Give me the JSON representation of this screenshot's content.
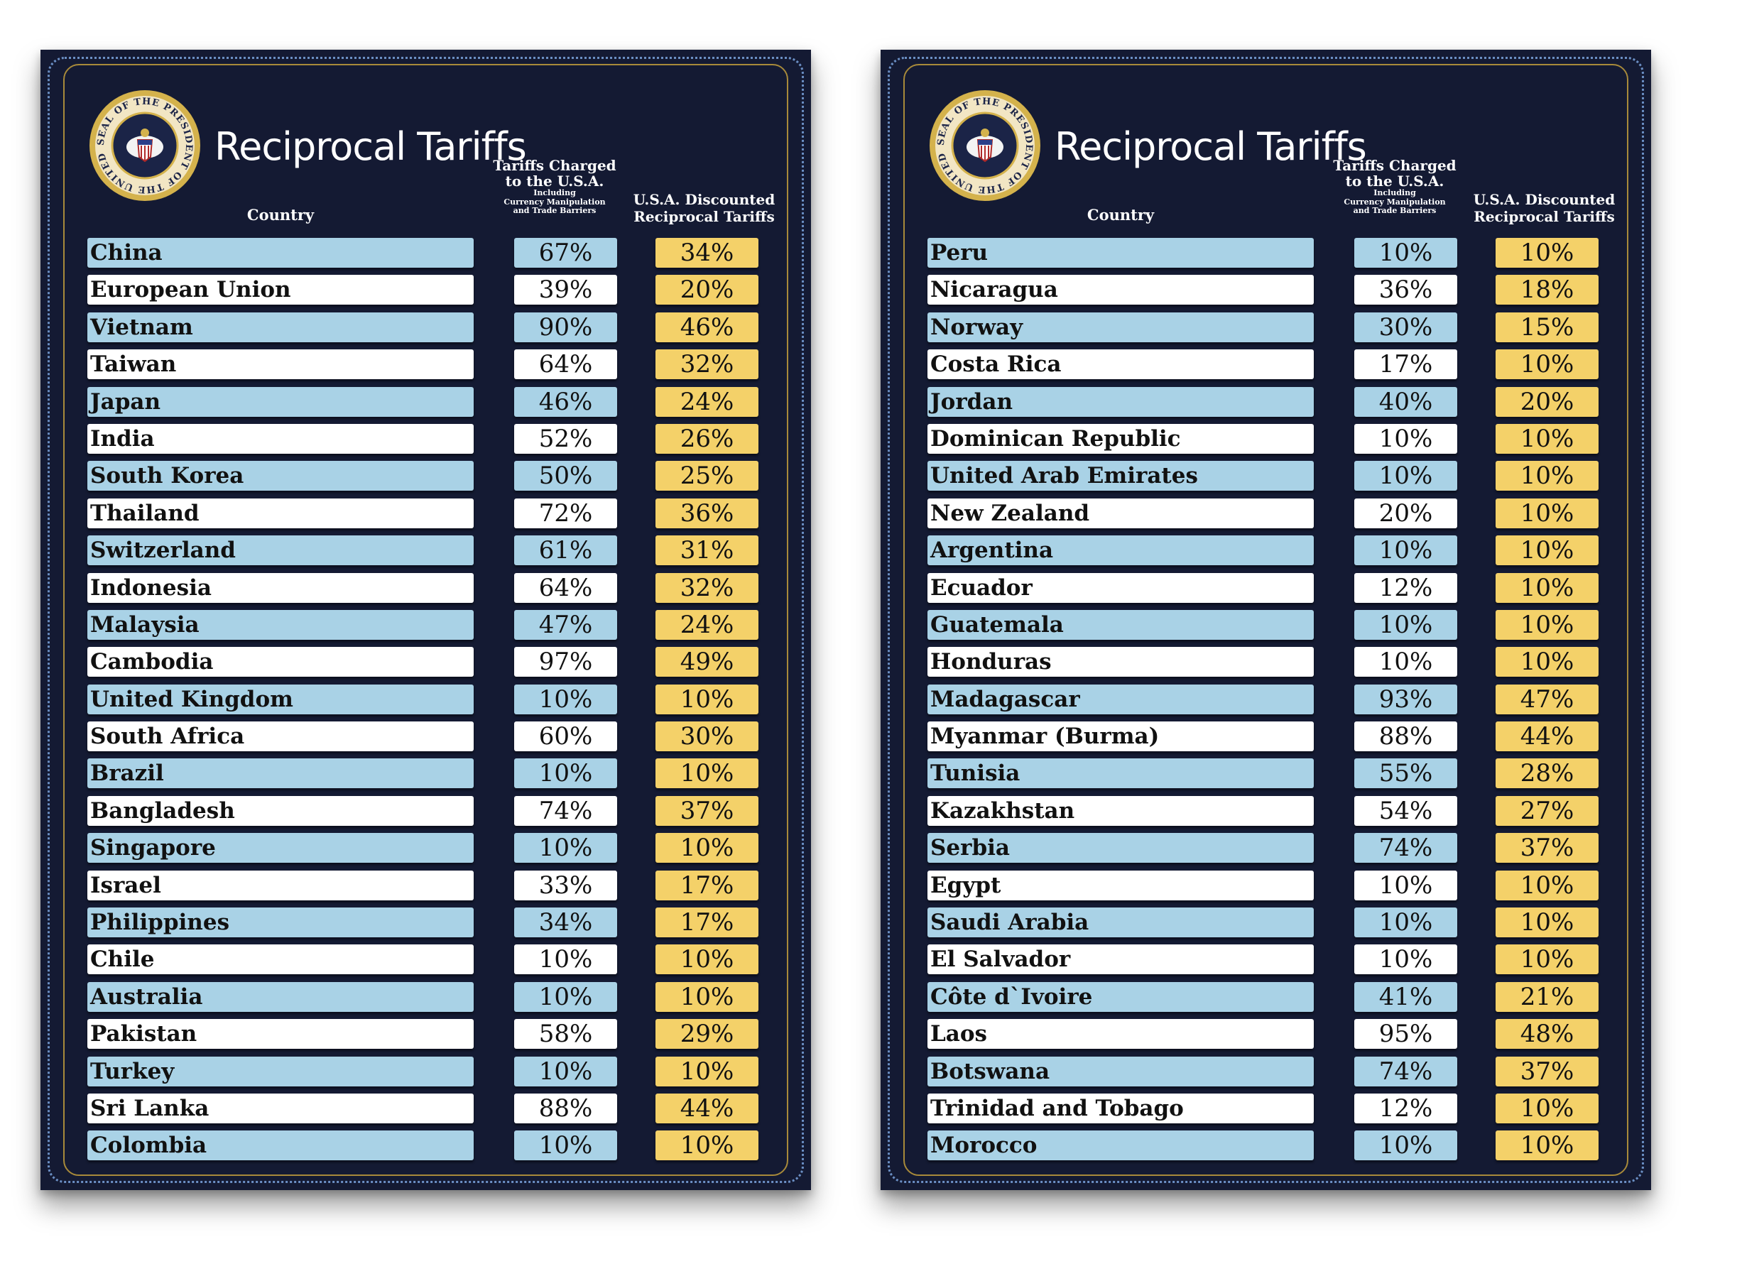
{
  "chart_data": [
    {
      "type": "table",
      "title": "Reciprocal Tariffs",
      "columns": [
        "Country",
        "Tariffs Charged to the U.S.A. Including Currency Manipulation and Trade Barriers",
        "U.S.A. Discounted Reciprocal Tariffs"
      ],
      "rows": [
        {
          "country": "China",
          "charged": "67%",
          "discounted": "34%"
        },
        {
          "country": "European Union",
          "charged": "39%",
          "discounted": "20%"
        },
        {
          "country": "Vietnam",
          "charged": "90%",
          "discounted": "46%"
        },
        {
          "country": "Taiwan",
          "charged": "64%",
          "discounted": "32%"
        },
        {
          "country": "Japan",
          "charged": "46%",
          "discounted": "24%"
        },
        {
          "country": "India",
          "charged": "52%",
          "discounted": "26%"
        },
        {
          "country": "South Korea",
          "charged": "50%",
          "discounted": "25%"
        },
        {
          "country": "Thailand",
          "charged": "72%",
          "discounted": "36%"
        },
        {
          "country": "Switzerland",
          "charged": "61%",
          "discounted": "31%"
        },
        {
          "country": "Indonesia",
          "charged": "64%",
          "discounted": "32%"
        },
        {
          "country": "Malaysia",
          "charged": "47%",
          "discounted": "24%"
        },
        {
          "country": "Cambodia",
          "charged": "97%",
          "discounted": "49%"
        },
        {
          "country": "United Kingdom",
          "charged": "10%",
          "discounted": "10%"
        },
        {
          "country": "South Africa",
          "charged": "60%",
          "discounted": "30%"
        },
        {
          "country": "Brazil",
          "charged": "10%",
          "discounted": "10%"
        },
        {
          "country": "Bangladesh",
          "charged": "74%",
          "discounted": "37%"
        },
        {
          "country": "Singapore",
          "charged": "10%",
          "discounted": "10%"
        },
        {
          "country": "Israel",
          "charged": "33%",
          "discounted": "17%"
        },
        {
          "country": "Philippines",
          "charged": "34%",
          "discounted": "17%"
        },
        {
          "country": "Chile",
          "charged": "10%",
          "discounted": "10%"
        },
        {
          "country": "Australia",
          "charged": "10%",
          "discounted": "10%"
        },
        {
          "country": "Pakistan",
          "charged": "58%",
          "discounted": "29%"
        },
        {
          "country": "Turkey",
          "charged": "10%",
          "discounted": "10%"
        },
        {
          "country": "Sri Lanka",
          "charged": "88%",
          "discounted": "44%"
        },
        {
          "country": "Colombia",
          "charged": "10%",
          "discounted": "10%"
        }
      ]
    },
    {
      "type": "table",
      "title": "Reciprocal Tariffs",
      "columns": [
        "Country",
        "Tariffs Charged to the U.S.A. Including Currency Manipulation and Trade Barriers",
        "U.S.A. Discounted Reciprocal Tariffs"
      ],
      "rows": [
        {
          "country": "Peru",
          "charged": "10%",
          "discounted": "10%"
        },
        {
          "country": "Nicaragua",
          "charged": "36%",
          "discounted": "18%"
        },
        {
          "country": "Norway",
          "charged": "30%",
          "discounted": "15%"
        },
        {
          "country": "Costa Rica",
          "charged": "17%",
          "discounted": "10%"
        },
        {
          "country": "Jordan",
          "charged": "40%",
          "discounted": "20%"
        },
        {
          "country": "Dominican Republic",
          "charged": "10%",
          "discounted": "10%"
        },
        {
          "country": "United Arab Emirates",
          "charged": "10%",
          "discounted": "10%"
        },
        {
          "country": "New Zealand",
          "charged": "20%",
          "discounted": "10%"
        },
        {
          "country": "Argentina",
          "charged": "10%",
          "discounted": "10%"
        },
        {
          "country": "Ecuador",
          "charged": "12%",
          "discounted": "10%"
        },
        {
          "country": "Guatemala",
          "charged": "10%",
          "discounted": "10%"
        },
        {
          "country": "Honduras",
          "charged": "10%",
          "discounted": "10%"
        },
        {
          "country": "Madagascar",
          "charged": "93%",
          "discounted": "47%"
        },
        {
          "country": "Myanmar (Burma)",
          "charged": "88%",
          "discounted": "44%"
        },
        {
          "country": "Tunisia",
          "charged": "55%",
          "discounted": "28%"
        },
        {
          "country": "Kazakhstan",
          "charged": "54%",
          "discounted": "27%"
        },
        {
          "country": "Serbia",
          "charged": "74%",
          "discounted": "37%"
        },
        {
          "country": "Egypt",
          "charged": "10%",
          "discounted": "10%"
        },
        {
          "country": "Saudi Arabia",
          "charged": "10%",
          "discounted": "10%"
        },
        {
          "country": "El Salvador",
          "charged": "10%",
          "discounted": "10%"
        },
        {
          "country": "Côte d`Ivoire",
          "charged": "41%",
          "discounted": "21%"
        },
        {
          "country": "Laos",
          "charged": "95%",
          "discounted": "48%"
        },
        {
          "country": "Botswana",
          "charged": "74%",
          "discounted": "37%"
        },
        {
          "country": "Trinidad and Tobago",
          "charged": "12%",
          "discounted": "10%"
        },
        {
          "country": "Morocco",
          "charged": "10%",
          "discounted": "10%"
        }
      ]
    }
  ],
  "header": {
    "title": "Reciprocal Tariffs",
    "country": "Country",
    "charged_line1": "Tariffs Charged",
    "charged_line2": "to the U.S.A.",
    "charged_note1": "Including",
    "charged_note2": "Currency Manipulation",
    "charged_note3": "and Trade Barriers",
    "discounted_line1": "U.S.A. Discounted",
    "discounted_line2": "Reciprocal Tariffs"
  },
  "seal": {
    "text": "SEAL OF THE PRESIDENT OF THE UNITED STATES",
    "ring_color": "#d4b24c",
    "field_color": "#1b2447"
  },
  "colors": {
    "board": "#141a33",
    "row_blue": "#a9d2e6",
    "row_white": "#ffffff",
    "discount": "#f4d169"
  }
}
